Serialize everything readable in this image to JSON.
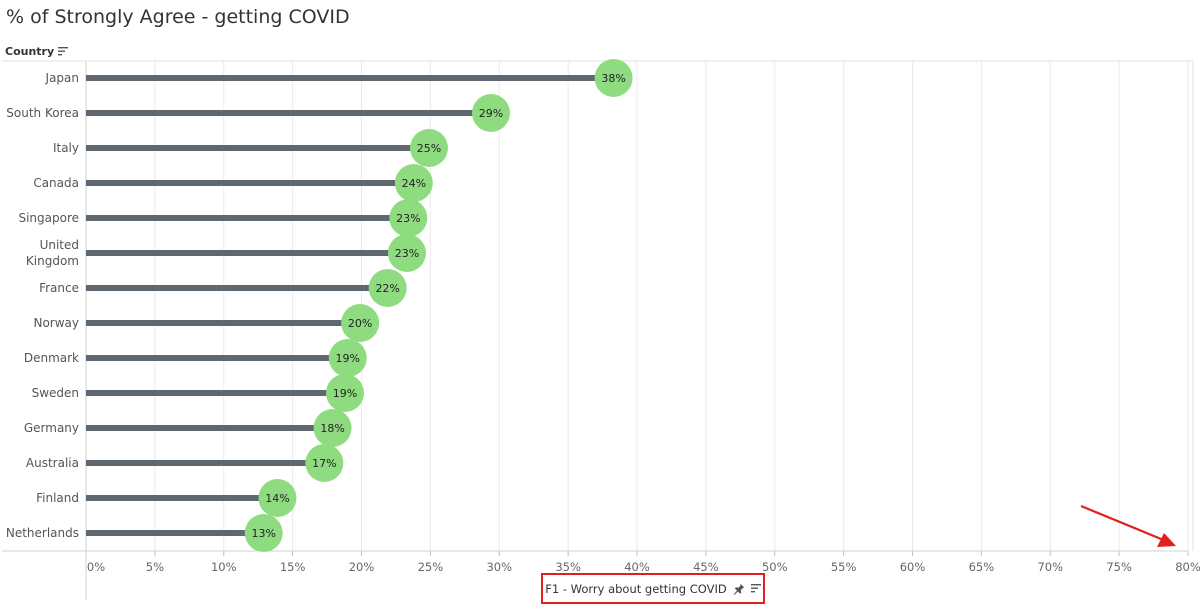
{
  "title": "% of Strongly Agree - getting COVID",
  "row_header": {
    "label": "Country",
    "icon": "sort-icon"
  },
  "x_axis": {
    "label": "F1 - Worry about getting COVID",
    "icons": [
      "pin-icon",
      "sort-icon"
    ]
  },
  "colors": {
    "stem": "#5f6770",
    "dot": "#8fdc80",
    "grid": "#ebebeb",
    "annotation": "#e0201c"
  },
  "chart_data": {
    "type": "bar",
    "style": "lollipop",
    "orientation": "horizontal",
    "title": "% of Strongly Agree - getting COVID",
    "ylabel": "Country",
    "xlabel": "F1 - Worry about getting COVID",
    "xlim": [
      0,
      80
    ],
    "x_ticks": [
      "0%",
      "5%",
      "10%",
      "15%",
      "20%",
      "25%",
      "30%",
      "35%",
      "40%",
      "45%",
      "50%",
      "55%",
      "60%",
      "65%",
      "70%",
      "75%",
      "80%"
    ],
    "grid": "vertical",
    "categories": [
      "Japan",
      "South Korea",
      "Italy",
      "Canada",
      "Singapore",
      "United Kingdom",
      "France",
      "Norway",
      "Denmark",
      "Sweden",
      "Germany",
      "Australia",
      "Finland",
      "Netherlands"
    ],
    "values": [
      38.3,
      29.4,
      24.9,
      23.8,
      23.4,
      23.3,
      21.9,
      19.9,
      19.0,
      18.8,
      17.9,
      17.3,
      13.9,
      12.9
    ],
    "labels": [
      "38%",
      "29%",
      "25%",
      "24%",
      "23%",
      "23%",
      "22%",
      "20%",
      "19%",
      "19%",
      "18%",
      "17%",
      "14%",
      "13%"
    ]
  }
}
